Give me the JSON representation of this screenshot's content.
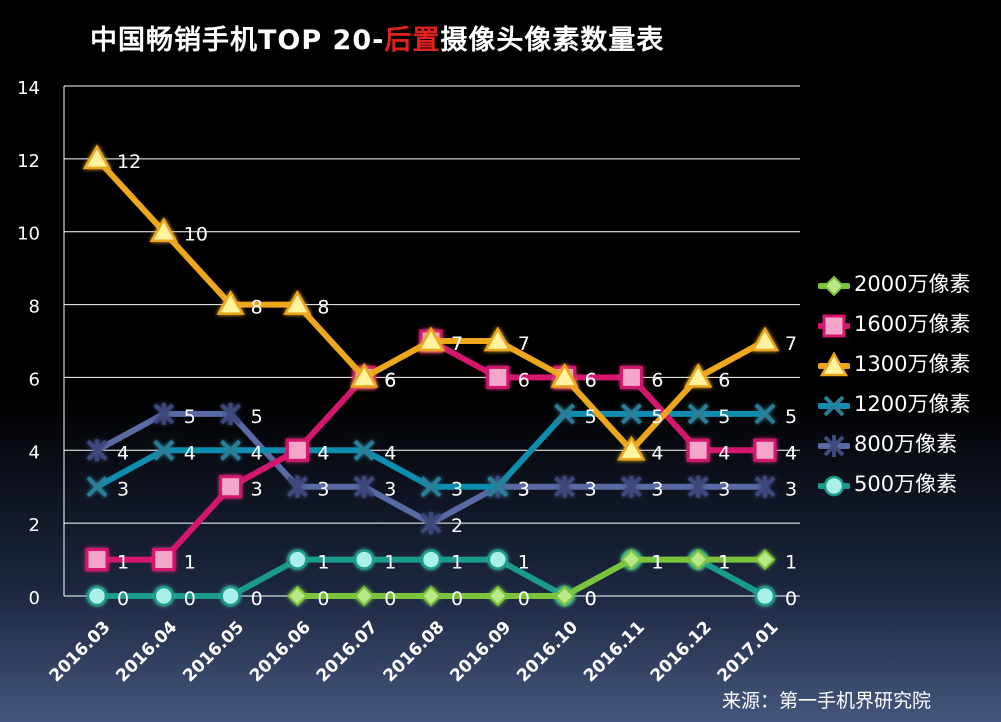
{
  "title": {
    "prefix": "中国畅销手机TOP 20-",
    "highlight": "后置",
    "suffix": "摄像头像素数量表"
  },
  "source": "来源：第一手机界研究院",
  "colors": {
    "s2000": "#7cc33c",
    "s1600": "#d4166e",
    "s1300": "#eca71a",
    "s1200": "#0d8db0",
    "s800": "#5a6aa4",
    "s500": "#1a9a8a"
  },
  "chart_data": {
    "type": "line",
    "title": "中国畅销手机TOP 20-后置摄像头像素数量表",
    "xlabel": "",
    "ylabel": "",
    "categories": [
      "2016.03",
      "2016.04",
      "2016.05",
      "2016.06",
      "2016.07",
      "2016.08",
      "2016.09",
      "2016.10",
      "2016.11",
      "2016.12",
      "2017.01"
    ],
    "ylim": [
      0,
      14
    ],
    "yticks": [
      0,
      2,
      4,
      6,
      8,
      10,
      12,
      14
    ],
    "grid": true,
    "legend_position": "right",
    "series": [
      {
        "name": "2000万像素",
        "key": "s2000",
        "marker": "diamond",
        "values": [
          0,
          0,
          0,
          0,
          0,
          0,
          0,
          0,
          1,
          1,
          1
        ],
        "start": 3
      },
      {
        "name": "1600万像素",
        "key": "s1600",
        "marker": "square",
        "values": [
          1,
          1,
          3,
          4,
          6,
          7,
          6,
          6,
          6,
          4,
          4
        ],
        "start": 0
      },
      {
        "name": "1300万像素",
        "key": "s1300",
        "marker": "triangle",
        "values": [
          12,
          10,
          8,
          8,
          6,
          7,
          7,
          6,
          4,
          6,
          7
        ],
        "start": 0
      },
      {
        "name": "1200万像素",
        "key": "s1200",
        "marker": "x",
        "values": [
          3,
          4,
          4,
          4,
          4,
          3,
          3,
          5,
          5,
          5,
          5
        ],
        "start": 0
      },
      {
        "name": "800万像素",
        "key": "s800",
        "marker": "star",
        "values": [
          4,
          5,
          5,
          3,
          3,
          2,
          3,
          3,
          3,
          3,
          3
        ],
        "start": 0
      },
      {
        "name": "500万像素",
        "key": "s500",
        "marker": "circle",
        "values": [
          0,
          0,
          0,
          1,
          1,
          1,
          1,
          0,
          1,
          1,
          0
        ],
        "start": 0
      }
    ]
  }
}
